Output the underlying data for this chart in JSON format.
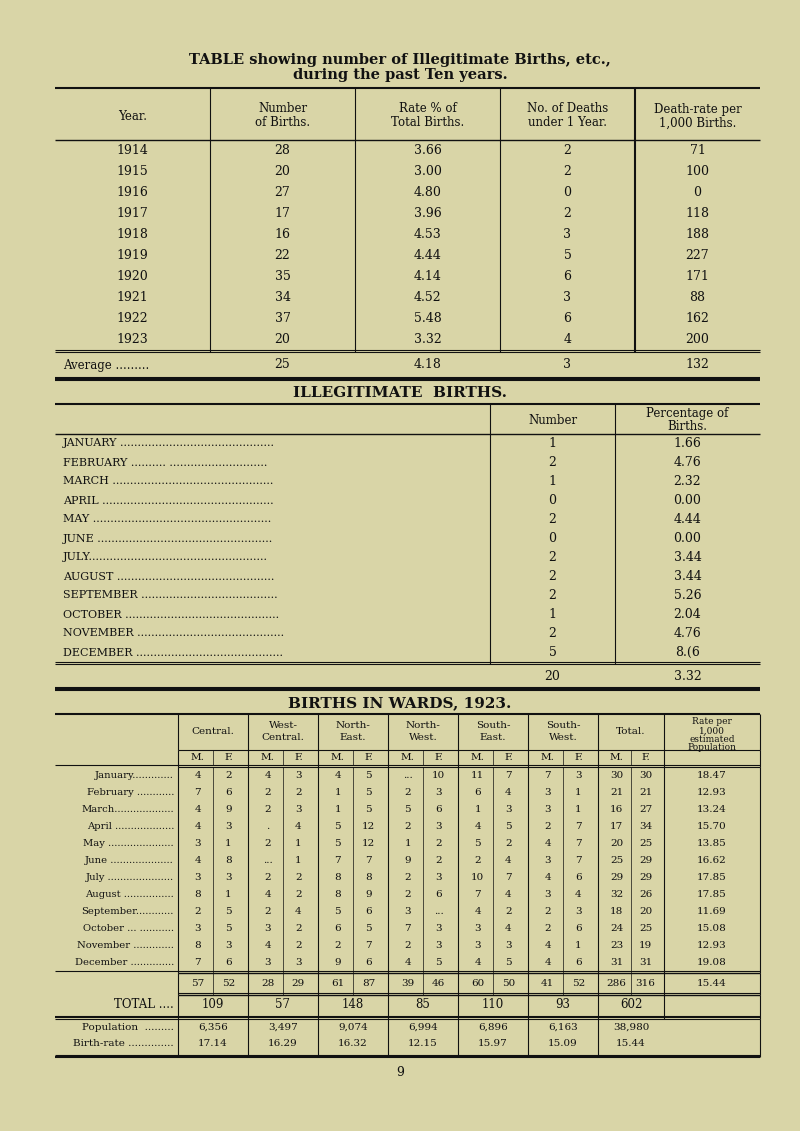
{
  "bg_color": "#d9d5a7",
  "title_line1": "TABLE showing number of Illegitimate Births, etc.,",
  "title_line2": "during the past Ten years.",
  "table1_rows": [
    [
      "1914",
      "28",
      "3.66",
      "2",
      "71"
    ],
    [
      "1915",
      "20",
      "3.00",
      "2",
      "100"
    ],
    [
      "1916",
      "27",
      "4.80",
      "0",
      "0"
    ],
    [
      "1917",
      "17",
      "3.96",
      "2",
      "118"
    ],
    [
      "1918",
      "16",
      "4.53",
      "3",
      "188"
    ],
    [
      "1919",
      "22",
      "4.44",
      "5",
      "227"
    ],
    [
      "1920",
      "35",
      "4.14",
      "6",
      "171"
    ],
    [
      "1921",
      "34",
      "4.52",
      "3",
      "88"
    ],
    [
      "1922",
      "37",
      "5.48",
      "6",
      "162"
    ],
    [
      "1923",
      "20",
      "3.32",
      "4",
      "200"
    ]
  ],
  "table1_avg": [
    "Average .........",
    "25",
    "4.18",
    "3",
    "132"
  ],
  "section2_title": "ILLEGITIMATE  BIRTHS.",
  "table2_rows": [
    [
      "JANUARY ............................................",
      "1",
      "1.66"
    ],
    [
      "FEBRUARY .......... ............................",
      "2",
      "4.76"
    ],
    [
      "MARCH ..............................................",
      "1",
      "2.32"
    ],
    [
      "APRIL .................................................",
      "0",
      "0.00"
    ],
    [
      "MAY ...................................................",
      "2",
      "4.44"
    ],
    [
      "JUNE ..................................................",
      "0",
      "0.00"
    ],
    [
      "JULY...................................................",
      "2",
      "3.44"
    ],
    [
      "AUGUST .............................................",
      "2",
      "3.44"
    ],
    [
      "SEPTEMBER .......................................",
      "2",
      "5.26"
    ],
    [
      "OCTOBER ............................................",
      "1",
      "2.04"
    ],
    [
      "NOVEMBER ..........................................",
      "2",
      "4.76"
    ],
    [
      "DECEMBER ..........................................",
      "5",
      "8.(6"
    ]
  ],
  "table2_total": [
    "20",
    "3.32"
  ],
  "section3_title": "BIRTHS IN WARDS, 1923.",
  "table3_rows": [
    [
      "January.............",
      "4",
      "2",
      "4",
      "3",
      "4",
      "5",
      "...",
      "10",
      "11",
      "7",
      "7",
      "3",
      "30",
      "30",
      "18.47"
    ],
    [
      "February ............",
      "7",
      "6",
      "2",
      "2",
      "1",
      "5",
      "2",
      "3",
      "6",
      "4",
      "3",
      "1",
      "21",
      "21",
      "12.93"
    ],
    [
      "March...................",
      "4",
      "9",
      "2",
      "3",
      "1",
      "5",
      "5",
      "6",
      "1",
      "3",
      "3",
      "1",
      "16",
      "27",
      "13.24"
    ],
    [
      "April ...................",
      "4",
      "3",
      ".",
      "4",
      "5",
      "12",
      "2",
      "3",
      "4",
      "5",
      "2",
      "7",
      "17",
      "34",
      "15.70"
    ],
    [
      "May .....................",
      "3",
      "1",
      "2",
      "1",
      "5",
      "12",
      "1",
      "2",
      "5",
      "2",
      "4",
      "7",
      "20",
      "25",
      "13.85"
    ],
    [
      "June ....................",
      "4",
      "8",
      "...",
      "1",
      "7",
      "7",
      "9",
      "2",
      "2",
      "4",
      "3",
      "7",
      "25",
      "29",
      "16.62"
    ],
    [
      "July .....................",
      "3",
      "3",
      "2",
      "2",
      "8",
      "8",
      "2",
      "3",
      "10",
      "7",
      "4",
      "6",
      "29",
      "29",
      "17.85"
    ],
    [
      "August ................",
      "8",
      "1",
      "4",
      "2",
      "8",
      "9",
      "2",
      "6",
      "7",
      "4",
      "3",
      "4",
      "32",
      "26",
      "17.85"
    ],
    [
      "September............",
      "2",
      "5",
      "2",
      "4",
      "5",
      "6",
      "3",
      "...",
      "4",
      "2",
      "2",
      "3",
      "18",
      "20",
      "11.69"
    ],
    [
      "October ... ...........",
      "3",
      "5",
      "3",
      "2",
      "6",
      "5",
      "7",
      "3",
      "3",
      "4",
      "2",
      "6",
      "24",
      "25",
      "15.08"
    ],
    [
      "November .............",
      "8",
      "3",
      "4",
      "2",
      "2",
      "7",
      "2",
      "3",
      "3",
      "3",
      "4",
      "1",
      "23",
      "19",
      "12.93"
    ],
    [
      "December ..............",
      "7",
      "6",
      "3",
      "3",
      "9",
      "6",
      "4",
      "5",
      "4",
      "5",
      "4",
      "6",
      "31",
      "31",
      "19.08"
    ]
  ],
  "table3_subtotal": [
    "57",
    "52",
    "28",
    "29",
    "61",
    "87",
    "39",
    "46",
    "60",
    "50",
    "41",
    "52",
    "286",
    "316",
    "15.44"
  ],
  "table3_total_vals": [
    "109",
    "57",
    "148",
    "85",
    "110",
    "93",
    "602"
  ],
  "table3_pop_vals": [
    "6,356",
    "3,497",
    "9,074",
    "6,994",
    "6,896",
    "6,163",
    "38,980"
  ],
  "table3_br_vals": [
    "17.14",
    "16.29",
    "16.32",
    "12.15",
    "15.97",
    "15.09",
    "15.44"
  ],
  "page_num": "9"
}
